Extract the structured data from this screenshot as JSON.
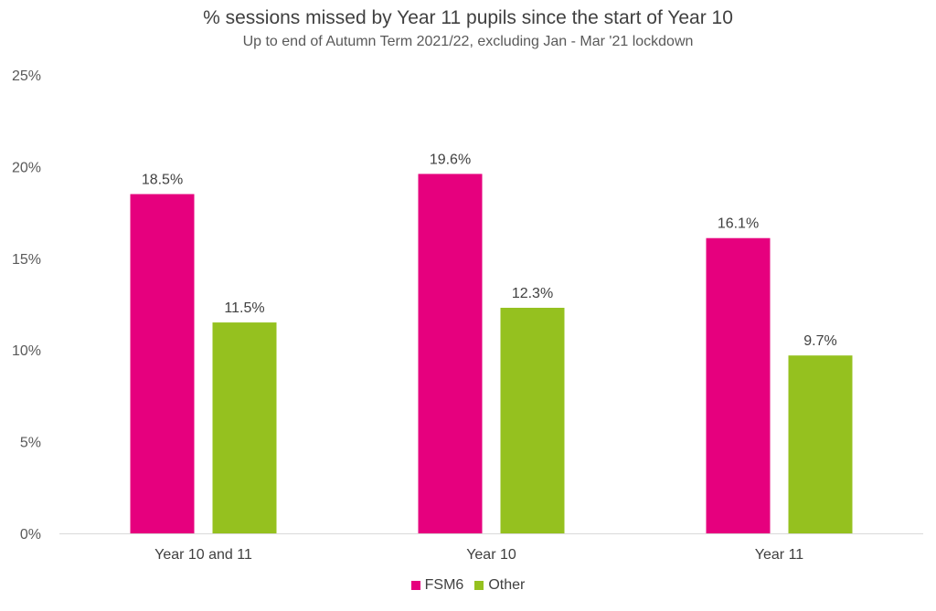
{
  "chart_data": {
    "type": "bar",
    "title": "% sessions missed by Year 11 pupils since the start of Year 10",
    "subtitle": "Up to end of Autumn Term 2021/22, excluding Jan - Mar '21 lockdown",
    "categories": [
      "Year 10 and 11",
      "Year 10",
      "Year 11"
    ],
    "series": [
      {
        "name": "FSM6",
        "color": "#E6007E",
        "values": [
          18.5,
          19.6,
          16.1
        ],
        "labels": [
          "18.5%",
          "19.6%",
          "16.1%"
        ]
      },
      {
        "name": "Other",
        "color": "#95C11F",
        "values": [
          11.5,
          12.3,
          9.7
        ],
        "labels": [
          "11.5%",
          "12.3%",
          "9.7%"
        ]
      }
    ],
    "ylim": [
      0,
      25
    ],
    "yticks": [
      0,
      5,
      10,
      15,
      20,
      25
    ],
    "ytick_labels": [
      "0%",
      "5%",
      "10%",
      "15%",
      "20%",
      "25%"
    ],
    "xlabel": "",
    "ylabel": "",
    "grid": false,
    "legend_position": "bottom"
  }
}
